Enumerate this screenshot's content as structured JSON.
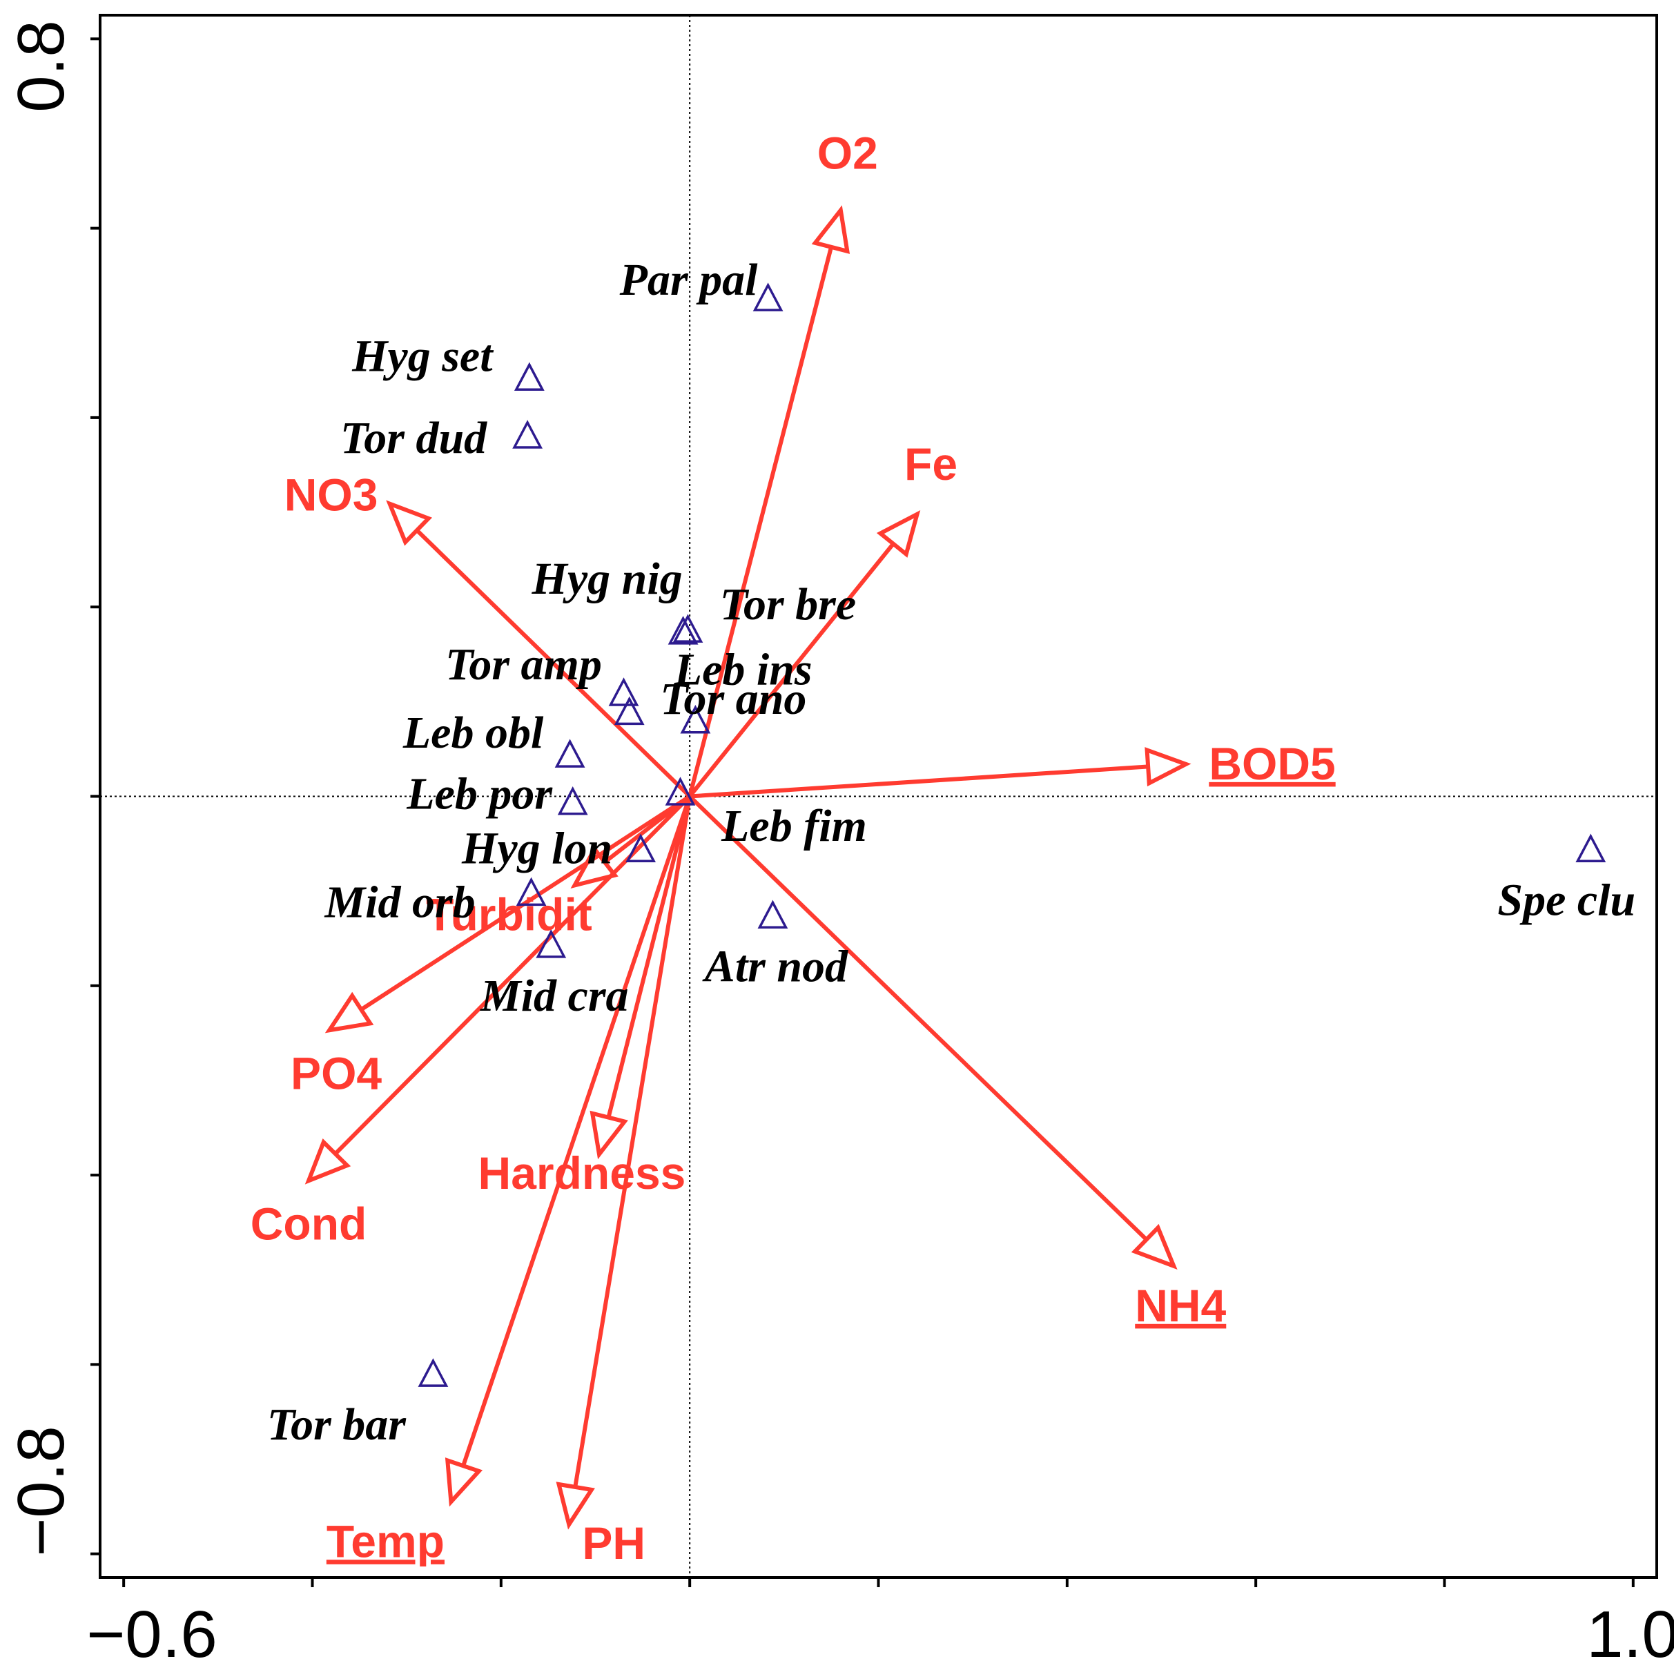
{
  "chart_data": {
    "type": "scatter",
    "title": "",
    "xlabel": "",
    "ylabel": "",
    "xlim": [
      -0.625,
      1.025
    ],
    "ylim": [
      -0.825,
      0.825
    ],
    "x_tick_labels": [
      "−0.6",
      "1.0"
    ],
    "y_tick_labels": [
      "0.8",
      "−0.8"
    ],
    "x_ticks": [
      -0.6,
      -0.4,
      -0.2,
      0.0,
      0.2,
      0.4,
      0.6,
      0.8,
      1.0
    ],
    "y_ticks": [
      0.8,
      0.6,
      0.4,
      0.2,
      0.0,
      -0.2,
      -0.4,
      -0.6,
      -0.8
    ],
    "origin_lines": true,
    "colors": {
      "arrows": "#ff3b30",
      "species_marker": "#2d1b8f",
      "species_text": "#000000",
      "axes": "#000000"
    },
    "species": [
      {
        "label": "Par pal",
        "x": 0.083,
        "y": 0.526
      },
      {
        "label": "Hyg set",
        "x": -0.17,
        "y": 0.442
      },
      {
        "label": "Tor dud",
        "x": -0.172,
        "y": 0.381
      },
      {
        "label": "Hyg nig",
        "x": -0.007,
        "y": 0.174
      },
      {
        "label": "Tor bre",
        "x": -0.002,
        "y": 0.176
      },
      {
        "label": "Tor amp",
        "x": -0.07,
        "y": 0.109
      },
      {
        "label": "Tor ano",
        "x": 0.006,
        "y": 0.08
      },
      {
        "label": "Leb obl",
        "x": -0.127,
        "y": 0.044
      },
      {
        "label": "Leb ins",
        "x": -0.064,
        "y": 0.089
      },
      {
        "label": "Leb por",
        "x": -0.124,
        "y": -0.006
      },
      {
        "label": "Leb fim",
        "x": -0.01,
        "y": 0.004
      },
      {
        "label": "Hyg lon",
        "x": -0.052,
        "y": -0.056
      },
      {
        "label": "Mid orb",
        "x": -0.168,
        "y": -0.102
      },
      {
        "label": "Mid cra",
        "x": -0.147,
        "y": -0.157
      },
      {
        "label": "Atr nod",
        "x": 0.088,
        "y": -0.126
      },
      {
        "label": "Spe clu",
        "x": 0.955,
        "y": -0.056
      },
      {
        "label": "Tor bar",
        "x": -0.272,
        "y": -0.61
      }
    ],
    "env_vectors": [
      {
        "label": "O2",
        "x": 0.16,
        "y": 0.619,
        "underline": false
      },
      {
        "label": "Fe",
        "x": 0.241,
        "y": 0.298,
        "underline": false
      },
      {
        "label": "NO3",
        "x": -0.318,
        "y": 0.309,
        "underline": false
      },
      {
        "label": "BOD5",
        "x": 0.526,
        "y": 0.034,
        "underline": true
      },
      {
        "label": "NH4",
        "x": 0.513,
        "y": -0.496,
        "underline": true
      },
      {
        "label": "Turbidit",
        "x": -0.122,
        "y": -0.094,
        "underline": false
      },
      {
        "label": "PO4",
        "x": -0.382,
        "y": -0.247,
        "underline": false
      },
      {
        "label": "Cond",
        "x": -0.404,
        "y": -0.406,
        "underline": false
      },
      {
        "label": "Hardness",
        "x": -0.096,
        "y": -0.378,
        "underline": false
      },
      {
        "label": "Temp",
        "x": -0.253,
        "y": -0.745,
        "underline": true
      },
      {
        "label": "PH",
        "x": -0.128,
        "y": -0.769,
        "underline": false
      }
    ]
  }
}
